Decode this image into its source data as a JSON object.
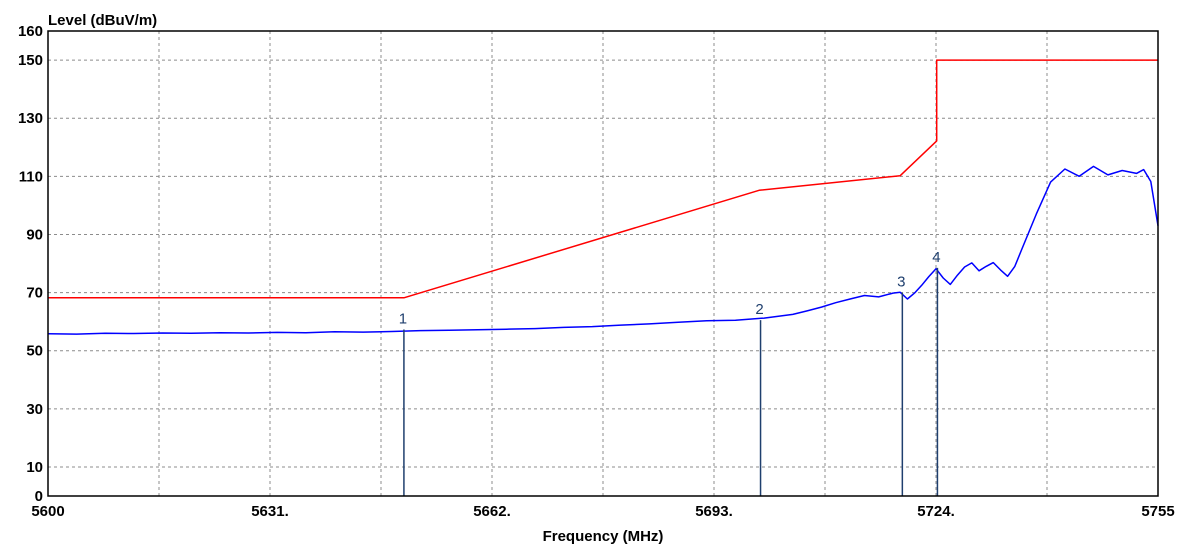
{
  "chart_data": {
    "type": "line",
    "ylabel": "Level (dBuV/m)",
    "xlabel": "Frequency (MHz)",
    "xlim": [
      5600,
      5755
    ],
    "ylim": [
      0,
      160
    ],
    "grid": true,
    "x_ticks": [
      {
        "value": 5600,
        "label": "5600"
      },
      {
        "value": 5631,
        "label": "5631."
      },
      {
        "value": 5662,
        "label": "5662."
      },
      {
        "value": 5693,
        "label": "5693."
      },
      {
        "value": 5724,
        "label": "5724."
      },
      {
        "value": 5755,
        "label": "5755"
      }
    ],
    "x_grid": [
      5615.5,
      5631,
      5646.5,
      5662,
      5677.5,
      5693,
      5708.5,
      5724,
      5739.5
    ],
    "y_ticks": [
      {
        "value": 0,
        "label": "0"
      },
      {
        "value": 10,
        "label": "10"
      },
      {
        "value": 30,
        "label": "30"
      },
      {
        "value": 50,
        "label": "50"
      },
      {
        "value": 70,
        "label": "70"
      },
      {
        "value": 90,
        "label": "90"
      },
      {
        "value": 110,
        "label": "110"
      },
      {
        "value": 130,
        "label": "130"
      },
      {
        "value": 150,
        "label": "150"
      },
      {
        "value": 160,
        "label": "160"
      }
    ],
    "y_grid": [
      10,
      30,
      50,
      70,
      90,
      110,
      130,
      150
    ],
    "series": [
      {
        "color": "#ff0000",
        "x": [
          5600,
          5649.7,
          5699.3,
          5719,
          5724.1,
          5724.1,
          5755
        ],
        "y": [
          68.2,
          68.2,
          105.2,
          110.2,
          122.2,
          150,
          150
        ]
      },
      {
        "color": "#0000ff",
        "x": [
          5600,
          5604,
          5608,
          5612,
          5616,
          5620,
          5624,
          5628,
          5632,
          5636,
          5640,
          5644,
          5648,
          5652,
          5656,
          5660,
          5664,
          5668,
          5672,
          5676,
          5680,
          5684,
          5688,
          5692,
          5696,
          5700,
          5704,
          5706,
          5708,
          5710,
          5712,
          5714,
          5716,
          5718,
          5719,
          5720,
          5721,
          5722,
          5723,
          5724,
          5725,
          5726,
          5727,
          5728,
          5729,
          5730,
          5731,
          5732,
          5733,
          5734,
          5735,
          5736,
          5738,
          5740,
          5742,
          5744,
          5746,
          5748,
          5750,
          5752,
          5753,
          5754,
          5755
        ],
        "y": [
          55.8,
          55.7,
          56,
          55.9,
          56.1,
          56,
          56.2,
          56.1,
          56.3,
          56.2,
          56.5,
          56.4,
          56.6,
          56.9,
          57,
          57.2,
          57.4,
          57.6,
          58,
          58.3,
          58.8,
          59.2,
          59.8,
          60.3,
          60.5,
          61.2,
          62.5,
          63.7,
          65,
          66.5,
          67.8,
          69,
          68.5,
          69.8,
          70.1,
          67.8,
          69.8,
          72.5,
          75.5,
          78.2,
          75,
          72.8,
          76,
          78.8,
          80.2,
          77.5,
          79,
          80.3,
          77.8,
          75.6,
          79,
          85,
          97,
          108,
          112.5,
          110,
          113.4,
          110.5,
          112,
          111,
          112.3,
          108.2,
          93
        ]
      }
    ],
    "markers": [
      {
        "label": "1",
        "x": 5649.7,
        "y": 57.3
      },
      {
        "label": "2",
        "x": 5699.5,
        "y": 60.5
      },
      {
        "label": "3",
        "x": 5719.3,
        "y": 70
      },
      {
        "label": "4",
        "x": 5724.2,
        "y": 78.5
      }
    ],
    "marker_color": "#1f3f6e"
  }
}
